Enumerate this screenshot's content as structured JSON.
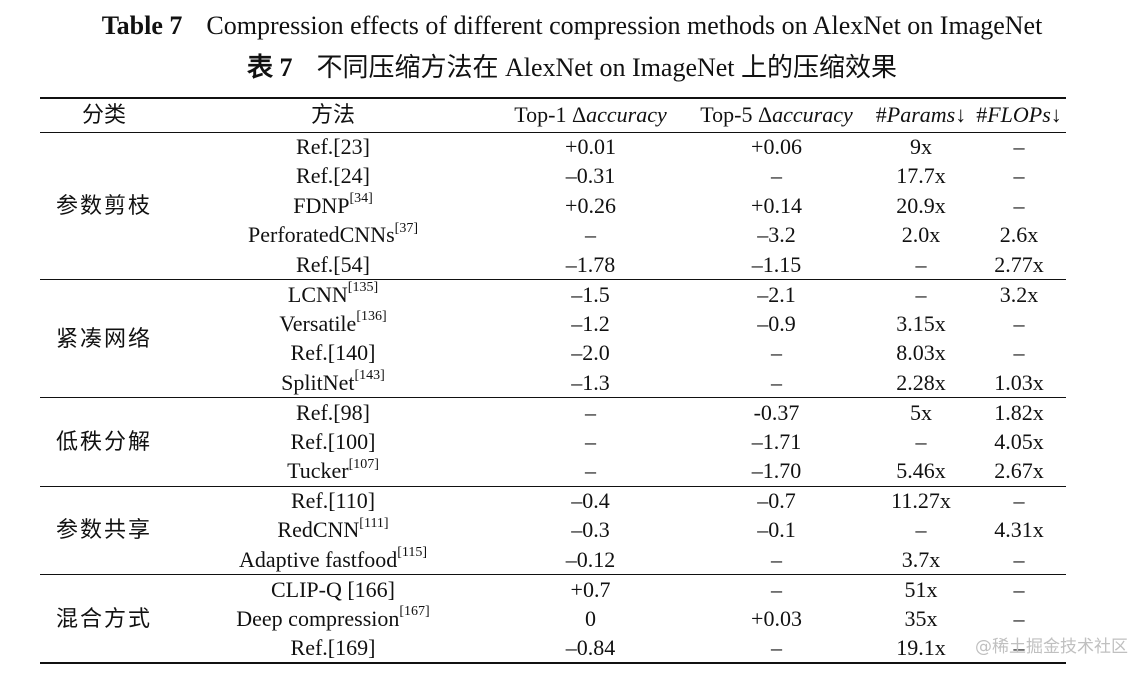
{
  "title": {
    "en_label": "Table 7",
    "en_text": "Compression effects of different compression methods on AlexNet on ImageNet",
    "zh_label": "表 7",
    "zh_text": "不同压缩方法在 AlexNet on ImageNet 上的压缩效果"
  },
  "headers": {
    "category": "分类",
    "method": "方法",
    "top1_prefix": "Top-1 Δ",
    "top1_italic": "accuracy",
    "top5_prefix": "Top-5 Δ",
    "top5_italic": "accuracy",
    "params_prefix": "#",
    "params_italic": "Params",
    "params_arrow": "↓",
    "flops_prefix": "#",
    "flops_italic": "FLOPs",
    "flops_arrow": "↓"
  },
  "groups": [
    {
      "category": "参数剪枝",
      "rows": [
        {
          "method": "Ref.[23]",
          "sup": "",
          "top1": "+0.01",
          "top5": "+0.06",
          "params": "9x",
          "flops": "–"
        },
        {
          "method": "Ref.[24]",
          "sup": "",
          "top1": "–0.31",
          "top5": "–",
          "params": "17.7x",
          "flops": "–"
        },
        {
          "method": "FDNP",
          "sup": "[34]",
          "top1": "+0.26",
          "top5": "+0.14",
          "params": "20.9x",
          "flops": "–"
        },
        {
          "method": "PerforatedCNNs",
          "sup": "[37]",
          "top1": "–",
          "top5": "–3.2",
          "params": "2.0x",
          "flops": "2.6x"
        },
        {
          "method": "Ref.[54]",
          "sup": "",
          "top1": "–1.78",
          "top5": "–1.15",
          "params": "–",
          "flops": "2.77x"
        }
      ]
    },
    {
      "category": "紧凑网络",
      "rows": [
        {
          "method": "LCNN",
          "sup": "[135]",
          "top1": "–1.5",
          "top5": "–2.1",
          "params": "–",
          "flops": "3.2x"
        },
        {
          "method": "Versatile",
          "sup": "[136]",
          "top1": "–1.2",
          "top5": "–0.9",
          "params": "3.15x",
          "flops": "–"
        },
        {
          "method": "Ref.[140]",
          "sup": "",
          "top1": "–2.0",
          "top5": "–",
          "params": "8.03x",
          "flops": "–"
        },
        {
          "method": "SplitNet",
          "sup": "[143]",
          "top1": "–1.3",
          "top5": "–",
          "params": "2.28x",
          "flops": "1.03x"
        }
      ]
    },
    {
      "category": "低秩分解",
      "rows": [
        {
          "method": "Ref.[98]",
          "sup": "",
          "top1": "–",
          "top5": "-0.37",
          "params": "5x",
          "flops": "1.82x"
        },
        {
          "method": "Ref.[100]",
          "sup": "",
          "top1": "–",
          "top5": "–1.71",
          "params": "–",
          "flops": "4.05x"
        },
        {
          "method": "Tucker",
          "sup": "[107]",
          "top1": "–",
          "top5": "–1.70",
          "params": "5.46x",
          "flops": "2.67x"
        }
      ]
    },
    {
      "category": "参数共享",
      "rows": [
        {
          "method": "Ref.[110]",
          "sup": "",
          "top1": "–0.4",
          "top5": "–0.7",
          "params": "11.27x",
          "flops": "–"
        },
        {
          "method": "RedCNN",
          "sup": "[111]",
          "top1": "–0.3",
          "top5": "–0.1",
          "params": "–",
          "flops": "4.31x"
        },
        {
          "method": "Adaptive fastfood",
          "sup": "[115]",
          "top1": "–0.12",
          "top5": "–",
          "params": "3.7x",
          "flops": "–"
        }
      ]
    },
    {
      "category": "混合方式",
      "rows": [
        {
          "method": "CLIP-Q [166]",
          "sup": "",
          "top1": "+0.7",
          "top5": "–",
          "params": "51x",
          "flops": "–"
        },
        {
          "method": "Deep compression",
          "sup": "[167]",
          "top1": "0",
          "top5": "+0.03",
          "params": "35x",
          "flops": "–"
        },
        {
          "method": "Ref.[169]",
          "sup": "",
          "top1": "–0.84",
          "top5": "–",
          "params": "19.1x",
          "flops": "–"
        }
      ]
    }
  ],
  "watermark": "@稀土掘金技术社区"
}
